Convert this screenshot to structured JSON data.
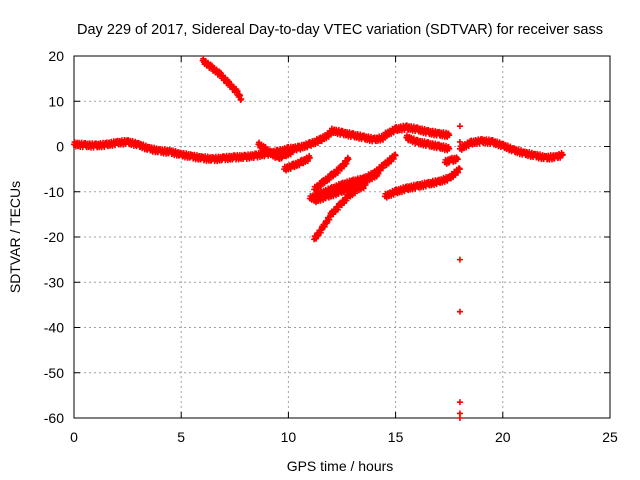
{
  "chart_data": {
    "type": "scatter",
    "title": "Day 229 of 2017, Sidereal Day-to-day VTEC variation (SDTVAR) for receiver sass",
    "xlabel": "GPS time / hours",
    "ylabel": "SDTVAR / TECUs",
    "xlim": [
      0,
      25
    ],
    "ylim": [
      -60,
      20
    ],
    "xticks": [
      "0",
      "5",
      "10",
      "15",
      "20",
      "25"
    ],
    "yticks": [
      "20",
      "10",
      "0",
      "-10",
      "-20",
      "-30",
      "-40",
      "-50",
      "-60"
    ],
    "grid": true,
    "legend": "none",
    "marker": "+",
    "color": "#ff0000",
    "series": [
      {
        "name": "main-band",
        "x": [
          0.0,
          0.5,
          1.0,
          1.5,
          2.0,
          2.5,
          3.0,
          3.5,
          4.0,
          4.5,
          5.0,
          5.5,
          6.0,
          6.5,
          7.0,
          7.5,
          8.0,
          8.5,
          9.0,
          9.5,
          10.0,
          10.5,
          11.0,
          11.5,
          12.0
        ],
        "y": [
          0.5,
          0.3,
          0.2,
          0.4,
          0.8,
          1.0,
          0.4,
          -0.5,
          -1.0,
          -1.2,
          -1.8,
          -2.2,
          -2.6,
          -2.8,
          -2.6,
          -2.4,
          -2.3,
          -2.0,
          -1.6,
          -1.2,
          -0.6,
          -0.3,
          0.5,
          1.5,
          3.0
        ]
      },
      {
        "name": "arc-upper-left",
        "x": [
          6.0,
          6.4,
          6.8,
          7.2,
          7.6,
          7.8
        ],
        "y": [
          19.0,
          17.5,
          16.0,
          14.0,
          12.0,
          10.5
        ]
      },
      {
        "name": "hump-9h",
        "x": [
          8.6,
          8.9,
          9.2,
          9.5,
          9.8,
          10.2
        ],
        "y": [
          0.5,
          -0.5,
          -1.5,
          -2.5,
          -2.0,
          -1.0
        ]
      },
      {
        "name": "segment-10h",
        "x": [
          9.8,
          10.2,
          10.6,
          11.0
        ],
        "y": [
          -5.0,
          -4.3,
          -3.5,
          -2.5
        ]
      },
      {
        "name": "rise-11h",
        "x": [
          11.2,
          11.6,
          12.0,
          12.4,
          12.8
        ],
        "y": [
          -9.5,
          -8.0,
          -6.5,
          -5.0,
          -2.8
        ]
      },
      {
        "name": "band-12h-a",
        "x": [
          11.0,
          11.5,
          12.0,
          12.5,
          13.0,
          13.5,
          14.0,
          14.5,
          15.0
        ],
        "y": [
          -11.5,
          -10.5,
          -9.5,
          -8.5,
          -7.8,
          -7.2,
          -6.0,
          -4.0,
          -2.0
        ]
      },
      {
        "name": "band-12h-b",
        "x": [
          11.2,
          11.8,
          12.4,
          13.0,
          13.6,
          14.2
        ],
        "y": [
          -12.0,
          -11.0,
          -10.0,
          -9.0,
          -7.5,
          -6.0
        ]
      },
      {
        "name": "steep-11h",
        "x": [
          11.2,
          11.6,
          12.0,
          12.4,
          12.8,
          13.2,
          13.6
        ],
        "y": [
          -20.5,
          -18.0,
          -15.0,
          -13.0,
          -11.0,
          -9.5,
          -8.5
        ]
      },
      {
        "name": "plateau-12h",
        "x": [
          12.0,
          12.5,
          13.0,
          13.5,
          14.0,
          14.5
        ],
        "y": [
          3.5,
          3.0,
          2.5,
          2.0,
          1.5,
          2.0
        ]
      },
      {
        "name": "peak-15h",
        "x": [
          14.5,
          15.0,
          15.5,
          16.0,
          16.5,
          17.0,
          17.5
        ],
        "y": [
          2.5,
          3.8,
          4.2,
          3.8,
          3.2,
          2.8,
          2.5
        ]
      },
      {
        "name": "dip-16h",
        "x": [
          15.5,
          16.0,
          16.5,
          17.0,
          17.5
        ],
        "y": [
          2.0,
          1.0,
          0.5,
          0.0,
          -0.5
        ]
      },
      {
        "name": "band-lower-15h",
        "x": [
          14.5,
          15.0,
          15.5,
          16.0,
          16.5,
          17.0,
          17.5,
          18.0
        ],
        "y": [
          -11.0,
          -10.0,
          -9.3,
          -8.8,
          -8.3,
          -7.8,
          -7.0,
          -5.0
        ]
      },
      {
        "name": "points-17h",
        "x": [
          17.3,
          17.6,
          17.9
        ],
        "y": [
          -3.5,
          -3.0,
          -2.8
        ]
      },
      {
        "name": "outliers-18h",
        "x": [
          18.0,
          18.0,
          18.0,
          18.0,
          18.0,
          18.0,
          18.0
        ],
        "y": [
          4.5,
          1.0,
          -25.0,
          -36.5,
          -56.5,
          -59.0,
          -60.0
        ]
      },
      {
        "name": "band-19-23h",
        "x": [
          18.0,
          18.5,
          19.0,
          19.5,
          20.0,
          20.5,
          21.0,
          21.5,
          22.0,
          22.5,
          22.8
        ],
        "y": [
          -0.5,
          0.8,
          1.2,
          1.0,
          0.2,
          -0.8,
          -1.5,
          -2.0,
          -2.5,
          -2.3,
          -1.8
        ]
      }
    ]
  }
}
